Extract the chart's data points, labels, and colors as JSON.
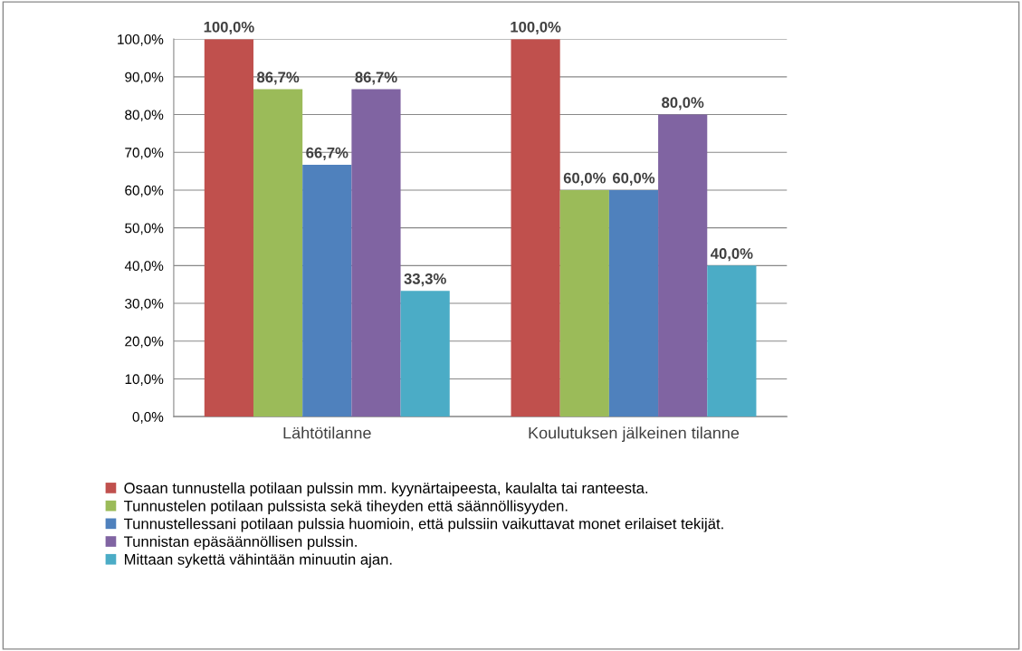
{
  "chart_data": {
    "type": "bar",
    "categories": [
      "Lähtötilanne",
      "Koulutuksen jälkeinen tilanne"
    ],
    "series": [
      {
        "name": "Osaan tunnustella potilaan pulssin mm. kyynärtaipeesta, kaulalta tai ranteesta.",
        "color": "#c0504d",
        "values": [
          100.0,
          100.0
        ],
        "value_labels": [
          "100,0%",
          "100,0%"
        ]
      },
      {
        "name": "Tunnustelen potilaan pulssista sekä tiheyden että säännöllisyyden.",
        "color": "#9bbb59",
        "values": [
          86.7,
          60.0
        ],
        "value_labels": [
          "86,7%",
          "60,0%"
        ]
      },
      {
        "name": "Tunnustellessani potilaan pulssia huomioin, että pulssiin vaikuttavat monet erilaiset tekijät.",
        "color": "#4f81bd",
        "values": [
          66.7,
          60.0
        ],
        "value_labels": [
          "66,7%",
          "60,0%"
        ]
      },
      {
        "name": "Tunnistan epäsäännöllisen pulssin.",
        "color": "#8064a2",
        "values": [
          86.7,
          80.0
        ],
        "value_labels": [
          "86,7%",
          "80,0%"
        ]
      },
      {
        "name": "Mittaan sykettä vähintään minuutin ajan.",
        "color": "#4bacc6",
        "values": [
          33.3,
          40.0
        ],
        "value_labels": [
          "33,3%",
          "40,0%"
        ]
      }
    ],
    "ylim": [
      0,
      100
    ],
    "yticks": [
      {
        "value": 0,
        "label": "0,0%"
      },
      {
        "value": 10,
        "label": "10,0%"
      },
      {
        "value": 20,
        "label": "20,0%"
      },
      {
        "value": 30,
        "label": "30,0%"
      },
      {
        "value": 40,
        "label": "40,0%"
      },
      {
        "value": 50,
        "label": "50,0%"
      },
      {
        "value": 60,
        "label": "60,0%"
      },
      {
        "value": 70,
        "label": "70,0%"
      },
      {
        "value": 80,
        "label": "80,0%"
      },
      {
        "value": 90,
        "label": "90,0%"
      },
      {
        "value": 100,
        "label": "100,0%"
      }
    ],
    "grid": "y",
    "legend": "bottom"
  }
}
